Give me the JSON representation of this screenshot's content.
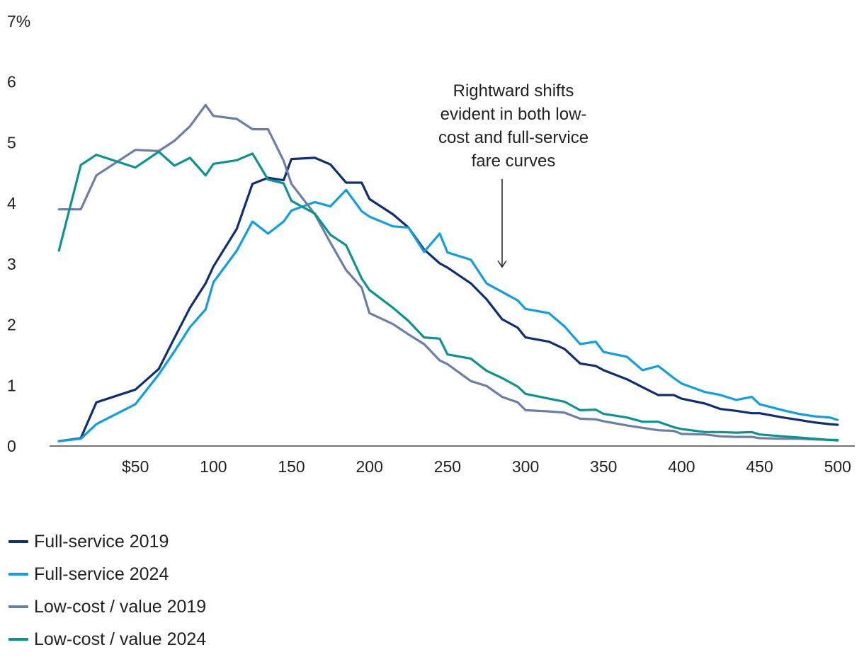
{
  "chart_data": {
    "type": "line",
    "x": [
      1,
      15,
      25,
      50,
      65,
      75,
      85,
      95,
      100,
      115,
      125,
      135,
      145,
      150,
      165,
      175,
      185,
      195,
      200,
      215,
      225,
      235,
      245,
      250,
      265,
      275,
      285,
      295,
      300,
      315,
      325,
      335,
      345,
      350,
      365,
      375,
      385,
      395,
      400,
      415,
      425,
      435,
      445,
      450,
      465,
      475,
      485,
      495,
      500
    ],
    "xticks": [
      50,
      100,
      150,
      200,
      250,
      300,
      350,
      400,
      450,
      500
    ],
    "xtick_labels": [
      "$50",
      "100",
      "150",
      "200",
      "250",
      "300",
      "350",
      "400",
      "450",
      "500"
    ],
    "yticks": [
      0,
      1,
      2,
      3,
      4,
      5,
      6,
      7
    ],
    "ytick_labels": [
      "0",
      "1",
      "2",
      "3",
      "4",
      "5",
      "6",
      "7%"
    ],
    "xlim": [
      -5,
      511
    ],
    "ylim": [
      0,
      7
    ],
    "grid": false,
    "legend_position": "bottom-left",
    "series": [
      {
        "name": "Full-service 2019",
        "color": "#0f2f72",
        "values": [
          0.08,
          0.13,
          0.72,
          0.93,
          1.27,
          1.78,
          2.28,
          2.68,
          2.96,
          3.58,
          4.32,
          4.42,
          4.38,
          4.73,
          4.75,
          4.64,
          4.34,
          4.34,
          4.07,
          3.82,
          3.6,
          3.24,
          3.01,
          2.94,
          2.68,
          2.42,
          2.09,
          1.95,
          1.79,
          1.72,
          1.6,
          1.36,
          1.32,
          1.25,
          1.1,
          0.97,
          0.84,
          0.84,
          0.78,
          0.7,
          0.61,
          0.58,
          0.54,
          0.54,
          0.47,
          0.43,
          0.39,
          0.36,
          0.35
        ]
      },
      {
        "name": "Full-service 2024",
        "color": "#0f9ee3",
        "values": [
          0.08,
          0.12,
          0.36,
          0.69,
          1.18,
          1.56,
          1.96,
          2.25,
          2.7,
          3.22,
          3.7,
          3.5,
          3.7,
          3.88,
          4.02,
          3.95,
          4.22,
          3.87,
          3.78,
          3.62,
          3.6,
          3.2,
          3.5,
          3.19,
          3.07,
          2.68,
          2.54,
          2.4,
          2.26,
          2.19,
          1.97,
          1.68,
          1.72,
          1.55,
          1.47,
          1.25,
          1.32,
          1.12,
          1.03,
          0.89,
          0.84,
          0.76,
          0.81,
          0.69,
          0.59,
          0.53,
          0.49,
          0.47,
          0.43
        ]
      },
      {
        "name": "Low-cost / value 2019",
        "color": "#6b7fa6",
        "values": [
          3.9,
          3.9,
          4.46,
          4.88,
          4.86,
          5.03,
          5.27,
          5.62,
          5.44,
          5.39,
          5.22,
          5.22,
          4.7,
          4.32,
          3.82,
          3.35,
          2.9,
          2.61,
          2.19,
          2.01,
          1.84,
          1.68,
          1.41,
          1.35,
          1.07,
          0.99,
          0.81,
          0.72,
          0.59,
          0.57,
          0.55,
          0.45,
          0.44,
          0.41,
          0.34,
          0.3,
          0.26,
          0.25,
          0.2,
          0.19,
          0.16,
          0.15,
          0.15,
          0.13,
          0.12,
          0.12,
          0.11,
          0.1,
          0.09
        ]
      },
      {
        "name": "Low-cost / value 2024",
        "color": "#0b948f",
        "values": [
          3.22,
          4.63,
          4.8,
          4.59,
          4.85,
          4.62,
          4.75,
          4.46,
          4.65,
          4.71,
          4.82,
          4.39,
          4.33,
          4.04,
          3.83,
          3.48,
          3.31,
          2.76,
          2.57,
          2.28,
          2.06,
          1.79,
          1.77,
          1.51,
          1.44,
          1.24,
          1.12,
          0.98,
          0.86,
          0.78,
          0.73,
          0.59,
          0.6,
          0.53,
          0.47,
          0.4,
          0.4,
          0.31,
          0.28,
          0.23,
          0.23,
          0.22,
          0.23,
          0.19,
          0.16,
          0.14,
          0.12,
          0.1,
          0.1
        ]
      }
    ],
    "annotation": {
      "lines": [
        "Rightward shifts",
        "evident in both low-",
        "cost and full-service",
        "fare curves"
      ],
      "x": 285,
      "arrow_from_y": 4.4,
      "arrow_to_y": 2.95
    }
  }
}
